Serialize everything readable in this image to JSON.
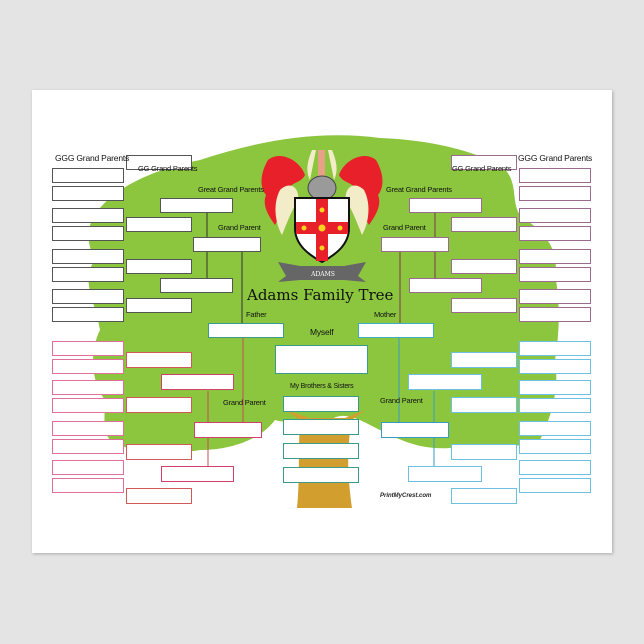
{
  "title": "Adams Family Tree",
  "crest": {
    "motto": "ADAMS"
  },
  "watermark": "PrintMyCrest.com",
  "labels": {
    "ggg_left": "GGG Grand Parents",
    "gg_left": "GG Grand Parents",
    "great_left": "Great Grand Parents",
    "grand_left_upper": "Grand Parent",
    "father": "Father",
    "ggg_right": "GGG Grand Parents",
    "gg_right": "GG Grand Parents",
    "great_right": "Great Grand Parents",
    "grand_right_upper": "Grand Parent",
    "mother": "Mother",
    "myself": "Myself",
    "siblings": "My Brothers & Sisters",
    "grand_left_lower": "Grand  Parent",
    "grand_right_lower": "Grand  Parent"
  },
  "colors": {
    "canopy": "#8cc63f",
    "trunk": "#d29f2e",
    "paternal_father_side": "#555555",
    "paternal_mother_side": "#e0709a",
    "maternal_father_side": "#9a6a90",
    "maternal_mother_side": "#6cc0e0",
    "center": "#3c9a8a"
  }
}
